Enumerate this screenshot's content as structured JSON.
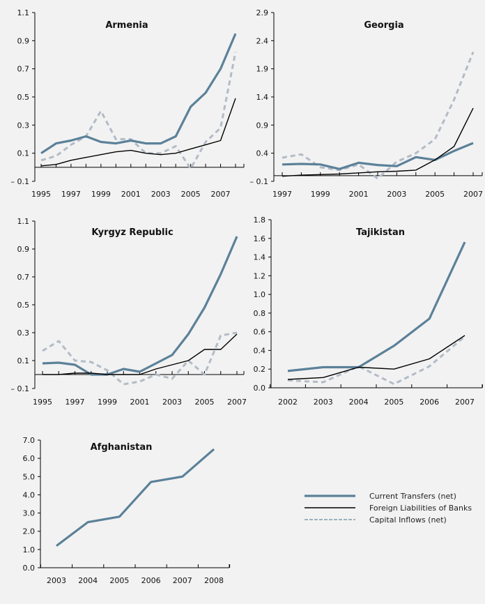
{
  "colors": {
    "current": "#5b8199",
    "banks": "#000000",
    "capital": "#b3bbc6",
    "background": "#f2f2f2"
  },
  "legend": [
    {
      "key": "current",
      "label": "Current Transfers (net)"
    },
    {
      "key": "banks",
      "label": "Foreign Liabilities of Banks"
    },
    {
      "key": "capital",
      "label": "Capital Inflows (net)"
    }
  ],
  "chart_data": [
    {
      "type": "line",
      "title": "Armenia",
      "x": [
        1995,
        1996,
        1997,
        1998,
        1999,
        2000,
        2001,
        2002,
        2003,
        2004,
        2005,
        2006,
        2007,
        2008
      ],
      "xticklabels": [
        "1995",
        "1997",
        "1999",
        "2001",
        "2003",
        "2005",
        "2007"
      ],
      "ylim": [
        -0.1,
        1.1
      ],
      "yticks": [
        "-0.1",
        "0.1",
        "0.3",
        "0.5",
        "0.7",
        "0.9",
        "1.1"
      ],
      "series": [
        {
          "key": "current",
          "name": "Current Transfers (net)",
          "values": [
            0.1,
            0.17,
            0.19,
            0.22,
            0.18,
            0.17,
            0.19,
            0.17,
            0.17,
            0.22,
            0.43,
            0.53,
            0.7,
            0.95
          ]
        },
        {
          "key": "banks",
          "name": "Foreign Liabilities of Banks",
          "values": [
            0.01,
            0.02,
            0.05,
            0.07,
            0.09,
            0.11,
            0.12,
            0.1,
            0.09,
            0.1,
            0.13,
            0.16,
            0.19,
            0.49
          ]
        },
        {
          "key": "capital",
          "name": "Capital Inflows (net)",
          "values": [
            0.05,
            0.08,
            0.16,
            0.22,
            0.4,
            0.2,
            0.2,
            0.1,
            0.1,
            0.15,
            -0.01,
            0.18,
            0.28,
            0.82
          ]
        }
      ]
    },
    {
      "type": "line",
      "title": "Georgia",
      "x": [
        1997,
        1998,
        1999,
        2000,
        2001,
        2002,
        2003,
        2004,
        2005,
        2006,
        2007
      ],
      "xticklabels": [
        "1997",
        "1999",
        "2001",
        "2003",
        "2005",
        "2007"
      ],
      "ylim": [
        -0.1,
        2.9
      ],
      "yticks": [
        "-0.1",
        "0.4",
        "0.9",
        "1.4",
        "1.9",
        "2.4",
        "2.9"
      ],
      "series": [
        {
          "key": "current",
          "name": "Current Transfers (net)",
          "values": [
            0.2,
            0.21,
            0.2,
            0.12,
            0.23,
            0.19,
            0.17,
            0.33,
            0.28,
            0.44,
            0.58
          ]
        },
        {
          "key": "banks",
          "name": "Foreign Liabilities of Banks",
          "values": [
            -0.01,
            0.01,
            0.02,
            0.03,
            0.05,
            0.07,
            0.08,
            0.1,
            0.28,
            0.52,
            1.2
          ]
        },
        {
          "key": "capital",
          "name": "Capital Inflows (net)",
          "values": [
            0.32,
            0.38,
            0.15,
            0.1,
            0.2,
            -0.05,
            0.25,
            0.4,
            0.65,
            1.35,
            2.2
          ]
        }
      ]
    },
    {
      "type": "line",
      "title": "Kyrgyz Republic",
      "x": [
        1995,
        1996,
        1997,
        1998,
        1999,
        2000,
        2001,
        2002,
        2003,
        2004,
        2005,
        2006,
        2007
      ],
      "xticklabels": [
        "1995",
        "1997",
        "1999",
        "2001",
        "2003",
        "2005",
        "2007"
      ],
      "ylim": [
        -0.1,
        1.1
      ],
      "yticks": [
        "-0.1",
        "0.1",
        "0.3",
        "0.5",
        "0.7",
        "0.9",
        "1.1"
      ],
      "series": [
        {
          "key": "current",
          "name": "Current Transfers (net)",
          "values": [
            0.08,
            0.085,
            0.07,
            0.0,
            0.0,
            0.04,
            0.02,
            0.08,
            0.14,
            0.29,
            0.48,
            0.72,
            0.99
          ]
        },
        {
          "key": "banks",
          "name": "Foreign Liabilities of Banks",
          "values": [
            0.0,
            0.0,
            0.01,
            0.01,
            0.0,
            0.0,
            0.0,
            0.04,
            0.07,
            0.1,
            0.18,
            0.18,
            0.29
          ]
        },
        {
          "key": "capital",
          "name": "Capital Inflows (net)",
          "values": [
            0.17,
            0.24,
            0.1,
            0.09,
            0.03,
            -0.07,
            -0.05,
            0.0,
            -0.03,
            0.1,
            0.0,
            0.28,
            0.3
          ]
        }
      ]
    },
    {
      "type": "line",
      "title": "Tajikistan",
      "x": [
        2002,
        2003,
        2004,
        2005,
        2006,
        2007
      ],
      "xticklabels": [
        "2002",
        "2003",
        "2004",
        "2005",
        "2006",
        "2007"
      ],
      "ylim": [
        0.0,
        1.8
      ],
      "yticks": [
        "0.0",
        "0.2",
        "0.4",
        "0.6",
        "0.8",
        "1.0",
        "1.2",
        "1.4",
        "1.6",
        "1.8"
      ],
      "series": [
        {
          "key": "current",
          "name": "Current Transfers (net)",
          "values": [
            0.18,
            0.22,
            0.22,
            0.45,
            0.74,
            1.56
          ]
        },
        {
          "key": "banks",
          "name": "Foreign Liabilities of Banks",
          "values": [
            0.09,
            0.11,
            0.22,
            0.2,
            0.31,
            0.56
          ]
        },
        {
          "key": "capital",
          "name": "Capital Inflows (net)",
          "values": [
            0.08,
            0.06,
            0.23,
            0.04,
            0.23,
            0.55
          ]
        }
      ]
    },
    {
      "type": "line",
      "title": "Afghanistan",
      "x": [
        2003,
        2004,
        2005,
        2006,
        2007,
        2008
      ],
      "xticklabels": [
        "2003",
        "2004",
        "2005",
        "2006",
        "2007",
        "2008"
      ],
      "ylim": [
        0.0,
        7.0
      ],
      "yticks": [
        "0.0",
        "1.0",
        "2.0",
        "3.0",
        "4.0",
        "5.0",
        "6.0",
        "7.0"
      ],
      "series": [
        {
          "key": "current",
          "name": "Current Transfers (net)",
          "values": [
            1.2,
            2.5,
            2.8,
            4.7,
            5.0,
            6.5
          ]
        }
      ]
    }
  ]
}
